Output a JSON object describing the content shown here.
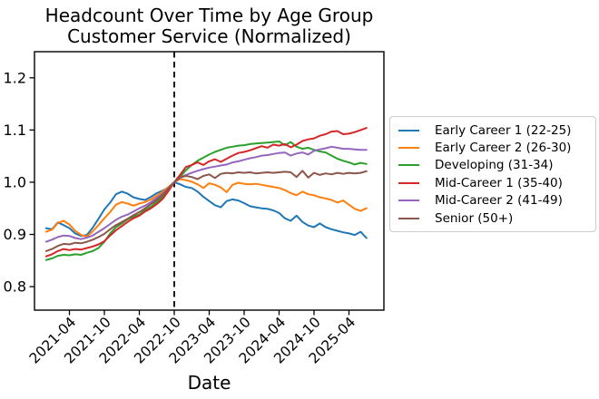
{
  "chart_data": {
    "type": "line",
    "title": "Headcount Over Time by Age Group",
    "subtitle": "Customer Service (Normalized)",
    "xlabel": "Date",
    "ylabel": "",
    "grid": false,
    "legend_position": "right",
    "xticks": [
      "2021-04",
      "2021-10",
      "2022-04",
      "2022-10",
      "2023-04",
      "2023-10",
      "2024-04",
      "2024-10",
      "2025-04"
    ],
    "yticks": [
      0.8,
      0.9,
      1.0,
      1.1,
      1.2
    ],
    "ylim": [
      0.755,
      1.25
    ],
    "xlim": [
      "2020-10",
      "2025-10"
    ],
    "vline": "2022-10",
    "x": [
      "2020-12",
      "2021-01",
      "2021-02",
      "2021-03",
      "2021-04",
      "2021-05",
      "2021-06",
      "2021-07",
      "2021-08",
      "2021-09",
      "2021-10",
      "2021-11",
      "2021-12",
      "2022-01",
      "2022-02",
      "2022-03",
      "2022-04",
      "2022-05",
      "2022-06",
      "2022-07",
      "2022-08",
      "2022-09",
      "2022-10",
      "2022-11",
      "2022-12",
      "2023-01",
      "2023-02",
      "2023-03",
      "2023-04",
      "2023-05",
      "2023-06",
      "2023-07",
      "2023-08",
      "2023-09",
      "2023-10",
      "2023-11",
      "2023-12",
      "2024-01",
      "2024-02",
      "2024-03",
      "2024-04",
      "2024-05",
      "2024-06",
      "2024-07",
      "2024-08",
      "2024-09",
      "2024-10",
      "2024-11",
      "2024-12",
      "2025-01",
      "2025-02",
      "2025-03",
      "2025-04",
      "2025-05",
      "2025-06",
      "2025-07"
    ],
    "series": [
      {
        "name": "Early Career 1 (22-25)",
        "color": "#1f77b4",
        "values": [
          0.912,
          0.91,
          0.923,
          0.918,
          0.912,
          0.902,
          0.897,
          0.899,
          0.913,
          0.93,
          0.948,
          0.961,
          0.977,
          0.982,
          0.978,
          0.971,
          0.968,
          0.966,
          0.972,
          0.979,
          0.984,
          0.99,
          1.0,
          0.996,
          0.991,
          0.989,
          0.982,
          0.972,
          0.964,
          0.956,
          0.952,
          0.964,
          0.967,
          0.965,
          0.96,
          0.954,
          0.952,
          0.95,
          0.949,
          0.946,
          0.941,
          0.931,
          0.926,
          0.936,
          0.924,
          0.917,
          0.914,
          0.921,
          0.914,
          0.91,
          0.907,
          0.904,
          0.902,
          0.899,
          0.905,
          0.893
        ]
      },
      {
        "name": "Early Career 2 (26-30)",
        "color": "#ff7f0e",
        "values": [
          0.905,
          0.909,
          0.922,
          0.926,
          0.919,
          0.907,
          0.899,
          0.896,
          0.906,
          0.918,
          0.931,
          0.943,
          0.957,
          0.962,
          0.959,
          0.955,
          0.959,
          0.962,
          0.967,
          0.974,
          0.982,
          0.991,
          1.0,
          1.006,
          1.004,
          1.001,
          0.996,
          0.989,
          0.998,
          0.995,
          0.99,
          0.981,
          0.995,
          0.999,
          0.997,
          0.996,
          0.997,
          0.995,
          0.993,
          0.991,
          0.989,
          0.985,
          0.979,
          0.975,
          0.982,
          0.977,
          0.975,
          0.971,
          0.969,
          0.966,
          0.961,
          0.965,
          0.957,
          0.949,
          0.945,
          0.95
        ]
      },
      {
        "name": "Developing (31-34)",
        "color": "#2ca02c",
        "values": [
          0.851,
          0.854,
          0.859,
          0.861,
          0.86,
          0.862,
          0.861,
          0.865,
          0.868,
          0.874,
          0.886,
          0.902,
          0.914,
          0.921,
          0.929,
          0.934,
          0.938,
          0.947,
          0.953,
          0.962,
          0.972,
          0.985,
          1.0,
          1.01,
          1.023,
          1.033,
          1.041,
          1.047,
          1.053,
          1.058,
          1.062,
          1.066,
          1.068,
          1.07,
          1.071,
          1.073,
          1.074,
          1.075,
          1.076,
          1.077,
          1.078,
          1.071,
          1.077,
          1.068,
          1.064,
          1.066,
          1.062,
          1.059,
          1.057,
          1.051,
          1.045,
          1.041,
          1.038,
          1.034,
          1.037,
          1.035
        ]
      },
      {
        "name": "Mid-Career 1 (35-40)",
        "color": "#d62728",
        "values": [
          0.858,
          0.862,
          0.868,
          0.872,
          0.87,
          0.872,
          0.871,
          0.874,
          0.877,
          0.881,
          0.887,
          0.898,
          0.908,
          0.916,
          0.924,
          0.931,
          0.936,
          0.944,
          0.95,
          0.958,
          0.968,
          0.983,
          1.0,
          1.014,
          1.029,
          1.033,
          1.038,
          1.033,
          1.04,
          1.044,
          1.039,
          1.045,
          1.051,
          1.056,
          1.058,
          1.061,
          1.065,
          1.069,
          1.066,
          1.072,
          1.07,
          1.073,
          1.067,
          1.072,
          1.079,
          1.082,
          1.084,
          1.089,
          1.092,
          1.097,
          1.098,
          1.092,
          1.093,
          1.096,
          1.1,
          1.104
        ]
      },
      {
        "name": "Mid-Career 2 (41-49)",
        "color": "#9467bd",
        "values": [
          0.886,
          0.89,
          0.895,
          0.898,
          0.897,
          0.893,
          0.891,
          0.894,
          0.898,
          0.905,
          0.912,
          0.92,
          0.928,
          0.934,
          0.938,
          0.944,
          0.95,
          0.955,
          0.962,
          0.97,
          0.978,
          0.989,
          1.0,
          1.008,
          1.014,
          1.018,
          1.022,
          1.025,
          1.028,
          1.03,
          1.032,
          1.034,
          1.038,
          1.04,
          1.043,
          1.046,
          1.048,
          1.051,
          1.052,
          1.054,
          1.056,
          1.057,
          1.051,
          1.055,
          1.057,
          1.053,
          1.06,
          1.063,
          1.065,
          1.068,
          1.066,
          1.064,
          1.064,
          1.063,
          1.062,
          1.062
        ]
      },
      {
        "name": "Senior (50+)",
        "color": "#8c564b",
        "values": [
          0.868,
          0.872,
          0.878,
          0.882,
          0.881,
          0.884,
          0.883,
          0.886,
          0.89,
          0.895,
          0.901,
          0.91,
          0.918,
          0.924,
          0.93,
          0.937,
          0.943,
          0.95,
          0.958,
          0.966,
          0.976,
          0.988,
          1.0,
          1.009,
          1.012,
          1.01,
          1.006,
          1.012,
          1.015,
          1.008,
          1.016,
          1.018,
          1.017,
          1.019,
          1.018,
          1.019,
          1.017,
          1.018,
          1.019,
          1.018,
          1.019,
          1.02,
          1.019,
          1.01,
          1.022,
          1.009,
          1.018,
          1.014,
          1.017,
          1.015,
          1.018,
          1.016,
          1.018,
          1.017,
          1.018,
          1.021
        ]
      }
    ]
  }
}
